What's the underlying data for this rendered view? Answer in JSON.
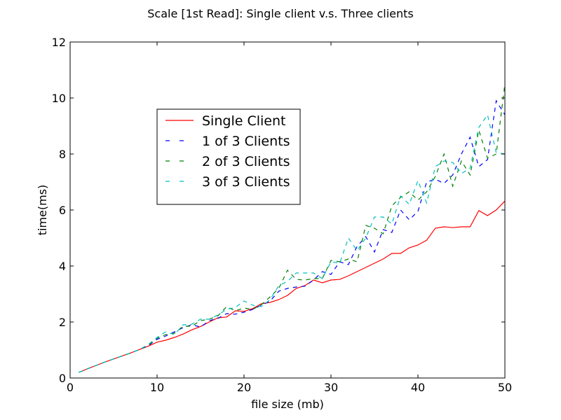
{
  "chart_data": {
    "type": "line",
    "title": "Scale [1st Read]: Single client  v.s. Three clients",
    "xlabel": "file size (mb)",
    "ylabel": "time(ms)",
    "xlim": [
      0,
      50
    ],
    "ylim": [
      0,
      12
    ],
    "xticks": [
      0,
      10,
      20,
      30,
      40,
      50
    ],
    "yticks": [
      0,
      2,
      4,
      6,
      8,
      10,
      12
    ],
    "grid": false,
    "legend_position": "upper-left",
    "x": [
      1,
      2,
      3,
      4,
      5,
      6,
      7,
      8,
      9,
      10,
      11,
      12,
      13,
      14,
      15,
      16,
      17,
      18,
      19,
      20,
      21,
      22,
      23,
      24,
      25,
      26,
      27,
      28,
      29,
      30,
      31,
      32,
      33,
      34,
      35,
      36,
      37,
      38,
      39,
      40,
      41,
      42,
      43,
      44,
      45,
      46,
      47,
      48,
      49,
      50
    ],
    "series": [
      {
        "name": "Single Client",
        "color": "#ff0000",
        "dash": "solid",
        "values": [
          0.2,
          0.33,
          0.45,
          0.57,
          0.68,
          0.79,
          0.9,
          1.02,
          1.14,
          1.28,
          1.35,
          1.45,
          1.57,
          1.72,
          1.84,
          2.0,
          2.15,
          2.18,
          2.4,
          2.38,
          2.48,
          2.65,
          2.7,
          2.8,
          2.95,
          3.2,
          3.3,
          3.5,
          3.4,
          3.5,
          3.52,
          3.65,
          3.8,
          3.95,
          4.1,
          4.25,
          4.45,
          4.45,
          4.65,
          4.75,
          4.92,
          5.35,
          5.4,
          5.37,
          5.4,
          5.4,
          5.98,
          5.8,
          6.0,
          6.32
        ]
      },
      {
        "name": "1 of 3 Clients",
        "color": "#0000ff",
        "dash": "dashed",
        "values": [
          0.2,
          0.33,
          0.45,
          0.57,
          0.68,
          0.79,
          0.9,
          1.02,
          1.16,
          1.38,
          1.5,
          1.65,
          1.8,
          1.9,
          1.82,
          2.05,
          2.13,
          2.3,
          2.28,
          2.35,
          2.45,
          2.6,
          2.75,
          3.1,
          3.2,
          3.25,
          3.28,
          3.5,
          3.8,
          3.7,
          4.15,
          4.05,
          4.7,
          5.05,
          4.5,
          5.3,
          5.2,
          6.0,
          5.65,
          5.95,
          7.0,
          7.1,
          6.95,
          7.25,
          8.0,
          8.6,
          7.55,
          7.8,
          9.9,
          9.4
        ]
      },
      {
        "name": "2 of 3 Clients",
        "color": "#008000",
        "dash": "dashed",
        "values": [
          0.2,
          0.33,
          0.45,
          0.57,
          0.68,
          0.79,
          0.9,
          1.02,
          1.18,
          1.42,
          1.55,
          1.6,
          1.85,
          1.85,
          2.05,
          2.1,
          2.22,
          2.55,
          2.4,
          2.5,
          2.45,
          2.62,
          2.9,
          3.2,
          3.85,
          3.52,
          3.5,
          3.55,
          3.55,
          4.2,
          4.15,
          4.25,
          4.15,
          5.45,
          5.35,
          5.15,
          6.15,
          6.45,
          6.65,
          6.35,
          6.65,
          7.2,
          8.0,
          6.85,
          7.75,
          7.25,
          8.85,
          7.85,
          8.0,
          10.5
        ]
      },
      {
        "name": "3 of 3 Clients",
        "color": "#00bfbf",
        "dash": "dashed",
        "values": [
          0.2,
          0.33,
          0.45,
          0.57,
          0.68,
          0.79,
          0.9,
          1.02,
          1.2,
          1.45,
          1.65,
          1.55,
          1.9,
          1.92,
          2.1,
          2.1,
          2.25,
          2.45,
          2.52,
          2.75,
          2.6,
          2.55,
          2.8,
          3.3,
          3.45,
          3.75,
          3.75,
          3.75,
          3.55,
          4.15,
          4.1,
          5.0,
          4.55,
          5.0,
          5.75,
          5.75,
          5.5,
          6.5,
          6.2,
          7.05,
          6.25,
          7.55,
          7.75,
          7.7,
          7.3,
          7.5,
          8.95,
          9.4,
          8.05,
          8.0
        ]
      }
    ]
  }
}
